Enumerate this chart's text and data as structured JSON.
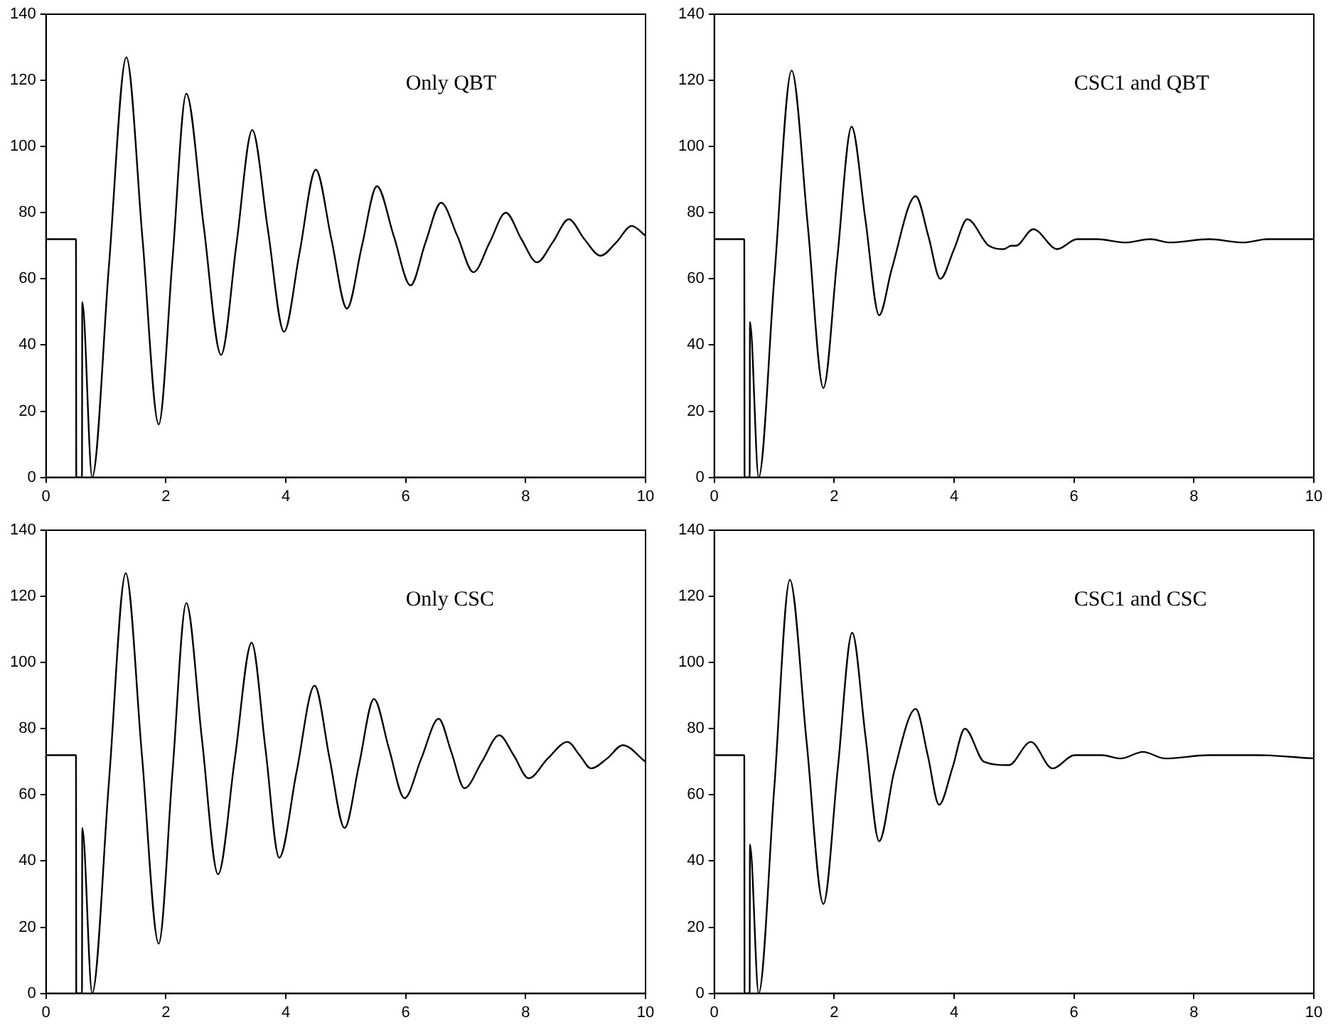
{
  "chart_data": [
    {
      "type": "line",
      "annotations": [
        "Only QBT"
      ],
      "color": "#000000",
      "xlim": [
        0,
        10
      ],
      "xticks": [
        0,
        2,
        4,
        6,
        8,
        10
      ],
      "ylim": [
        0,
        140
      ],
      "yticks": [
        0,
        20,
        40,
        60,
        80,
        100,
        120,
        140
      ],
      "x": [
        0,
        0.5,
        0.505,
        0.6,
        0.605,
        0.77,
        1.05,
        1.34,
        1.61,
        1.88,
        2.11,
        2.34,
        2.63,
        2.92,
        3.18,
        3.44,
        3.7,
        3.97,
        4.23,
        4.5,
        4.76,
        5.02,
        5.27,
        5.52,
        5.8,
        6.08,
        6.33,
        6.59,
        6.86,
        7.13,
        7.4,
        7.67,
        7.93,
        8.19,
        8.45,
        8.72,
        8.98,
        9.25,
        9.51,
        9.77,
        10
      ],
      "values": [
        72,
        72,
        0,
        0,
        53,
        0,
        64,
        127,
        72,
        16,
        66,
        116,
        76,
        37,
        71,
        105,
        75,
        44,
        68,
        93,
        72,
        51,
        70,
        88,
        73,
        58,
        71,
        83,
        73,
        62,
        71,
        80,
        72,
        65,
        71,
        78,
        72,
        67,
        71,
        76,
        73
      ]
    },
    {
      "type": "line",
      "annotations": [
        "CSC1 and QBT"
      ],
      "color": "#000000",
      "xlim": [
        0,
        10
      ],
      "xticks": [
        0,
        2,
        4,
        6,
        8,
        10
      ],
      "ylim": [
        0,
        140
      ],
      "yticks": [
        0,
        20,
        40,
        60,
        80,
        100,
        120,
        140
      ],
      "x": [
        0,
        0.5,
        0.505,
        0.59,
        0.595,
        0.74,
        1.0,
        1.29,
        1.56,
        1.82,
        2.05,
        2.29,
        2.52,
        2.75,
        2.96,
        3.36,
        3.57,
        3.77,
        4.0,
        4.22,
        4.58,
        4.83,
        4.95,
        5.03,
        5.32,
        5.72,
        6.05,
        6.38,
        6.86,
        7.27,
        7.6,
        8.25,
        8.82,
        9.23,
        10
      ],
      "values": [
        72,
        72,
        0,
        0,
        47,
        0,
        60,
        123,
        76,
        27,
        66,
        106,
        78,
        49,
        63,
        85,
        73,
        60,
        69,
        78,
        70,
        69,
        70,
        70,
        75,
        69,
        72,
        72,
        71,
        72,
        71,
        72,
        71,
        72,
        72
      ]
    },
    {
      "type": "line",
      "annotations": [
        "Only CSC"
      ],
      "color": "#000000",
      "xlim": [
        0,
        10
      ],
      "xticks": [
        0,
        2,
        4,
        6,
        8,
        10
      ],
      "ylim": [
        0,
        140
      ],
      "yticks": [
        0,
        20,
        40,
        60,
        80,
        100,
        120,
        140
      ],
      "x": [
        0,
        0.5,
        0.505,
        0.6,
        0.605,
        0.77,
        1.05,
        1.33,
        1.6,
        1.88,
        2.11,
        2.34,
        2.6,
        2.87,
        3.15,
        3.43,
        3.66,
        3.89,
        4.18,
        4.48,
        4.73,
        4.98,
        5.22,
        5.47,
        5.72,
        5.98,
        6.26,
        6.55,
        6.76,
        6.98,
        7.27,
        7.56,
        7.8,
        8.05,
        8.37,
        8.7,
        8.9,
        9.09,
        9.36,
        9.62,
        10
      ],
      "values": [
        72,
        72,
        0,
        0,
        50,
        0,
        64,
        127,
        72,
        15,
        67,
        118,
        77,
        36,
        71,
        106,
        74,
        41,
        67,
        93,
        71,
        50,
        69,
        89,
        74,
        59,
        71,
        83,
        73,
        62,
        70,
        78,
        72,
        65,
        71,
        76,
        72,
        68,
        71,
        75,
        70
      ]
    },
    {
      "type": "line",
      "annotations": [
        "CSC1 and CSC"
      ],
      "color": "#000000",
      "xlim": [
        0,
        10
      ],
      "xticks": [
        0,
        2,
        4,
        6,
        8,
        10
      ],
      "ylim": [
        0,
        140
      ],
      "yticks": [
        0,
        20,
        40,
        60,
        80,
        100,
        120,
        140
      ],
      "x": [
        0,
        0.5,
        0.505,
        0.59,
        0.595,
        0.74,
        1.0,
        1.26,
        1.54,
        1.82,
        2.06,
        2.3,
        2.52,
        2.75,
        3.0,
        3.36,
        3.56,
        3.75,
        3.97,
        4.18,
        4.5,
        4.91,
        5.28,
        5.64,
        6.01,
        6.46,
        6.78,
        7.15,
        7.52,
        8.25,
        9.06,
        10
      ],
      "values": [
        72,
        72,
        0,
        0,
        45,
        0,
        62,
        125,
        76,
        27,
        68,
        109,
        78,
        46,
        67,
        86,
        72,
        57,
        68,
        80,
        70,
        69,
        76,
        68,
        72,
        72,
        71,
        73,
        71,
        72,
        72,
        71
      ]
    }
  ]
}
